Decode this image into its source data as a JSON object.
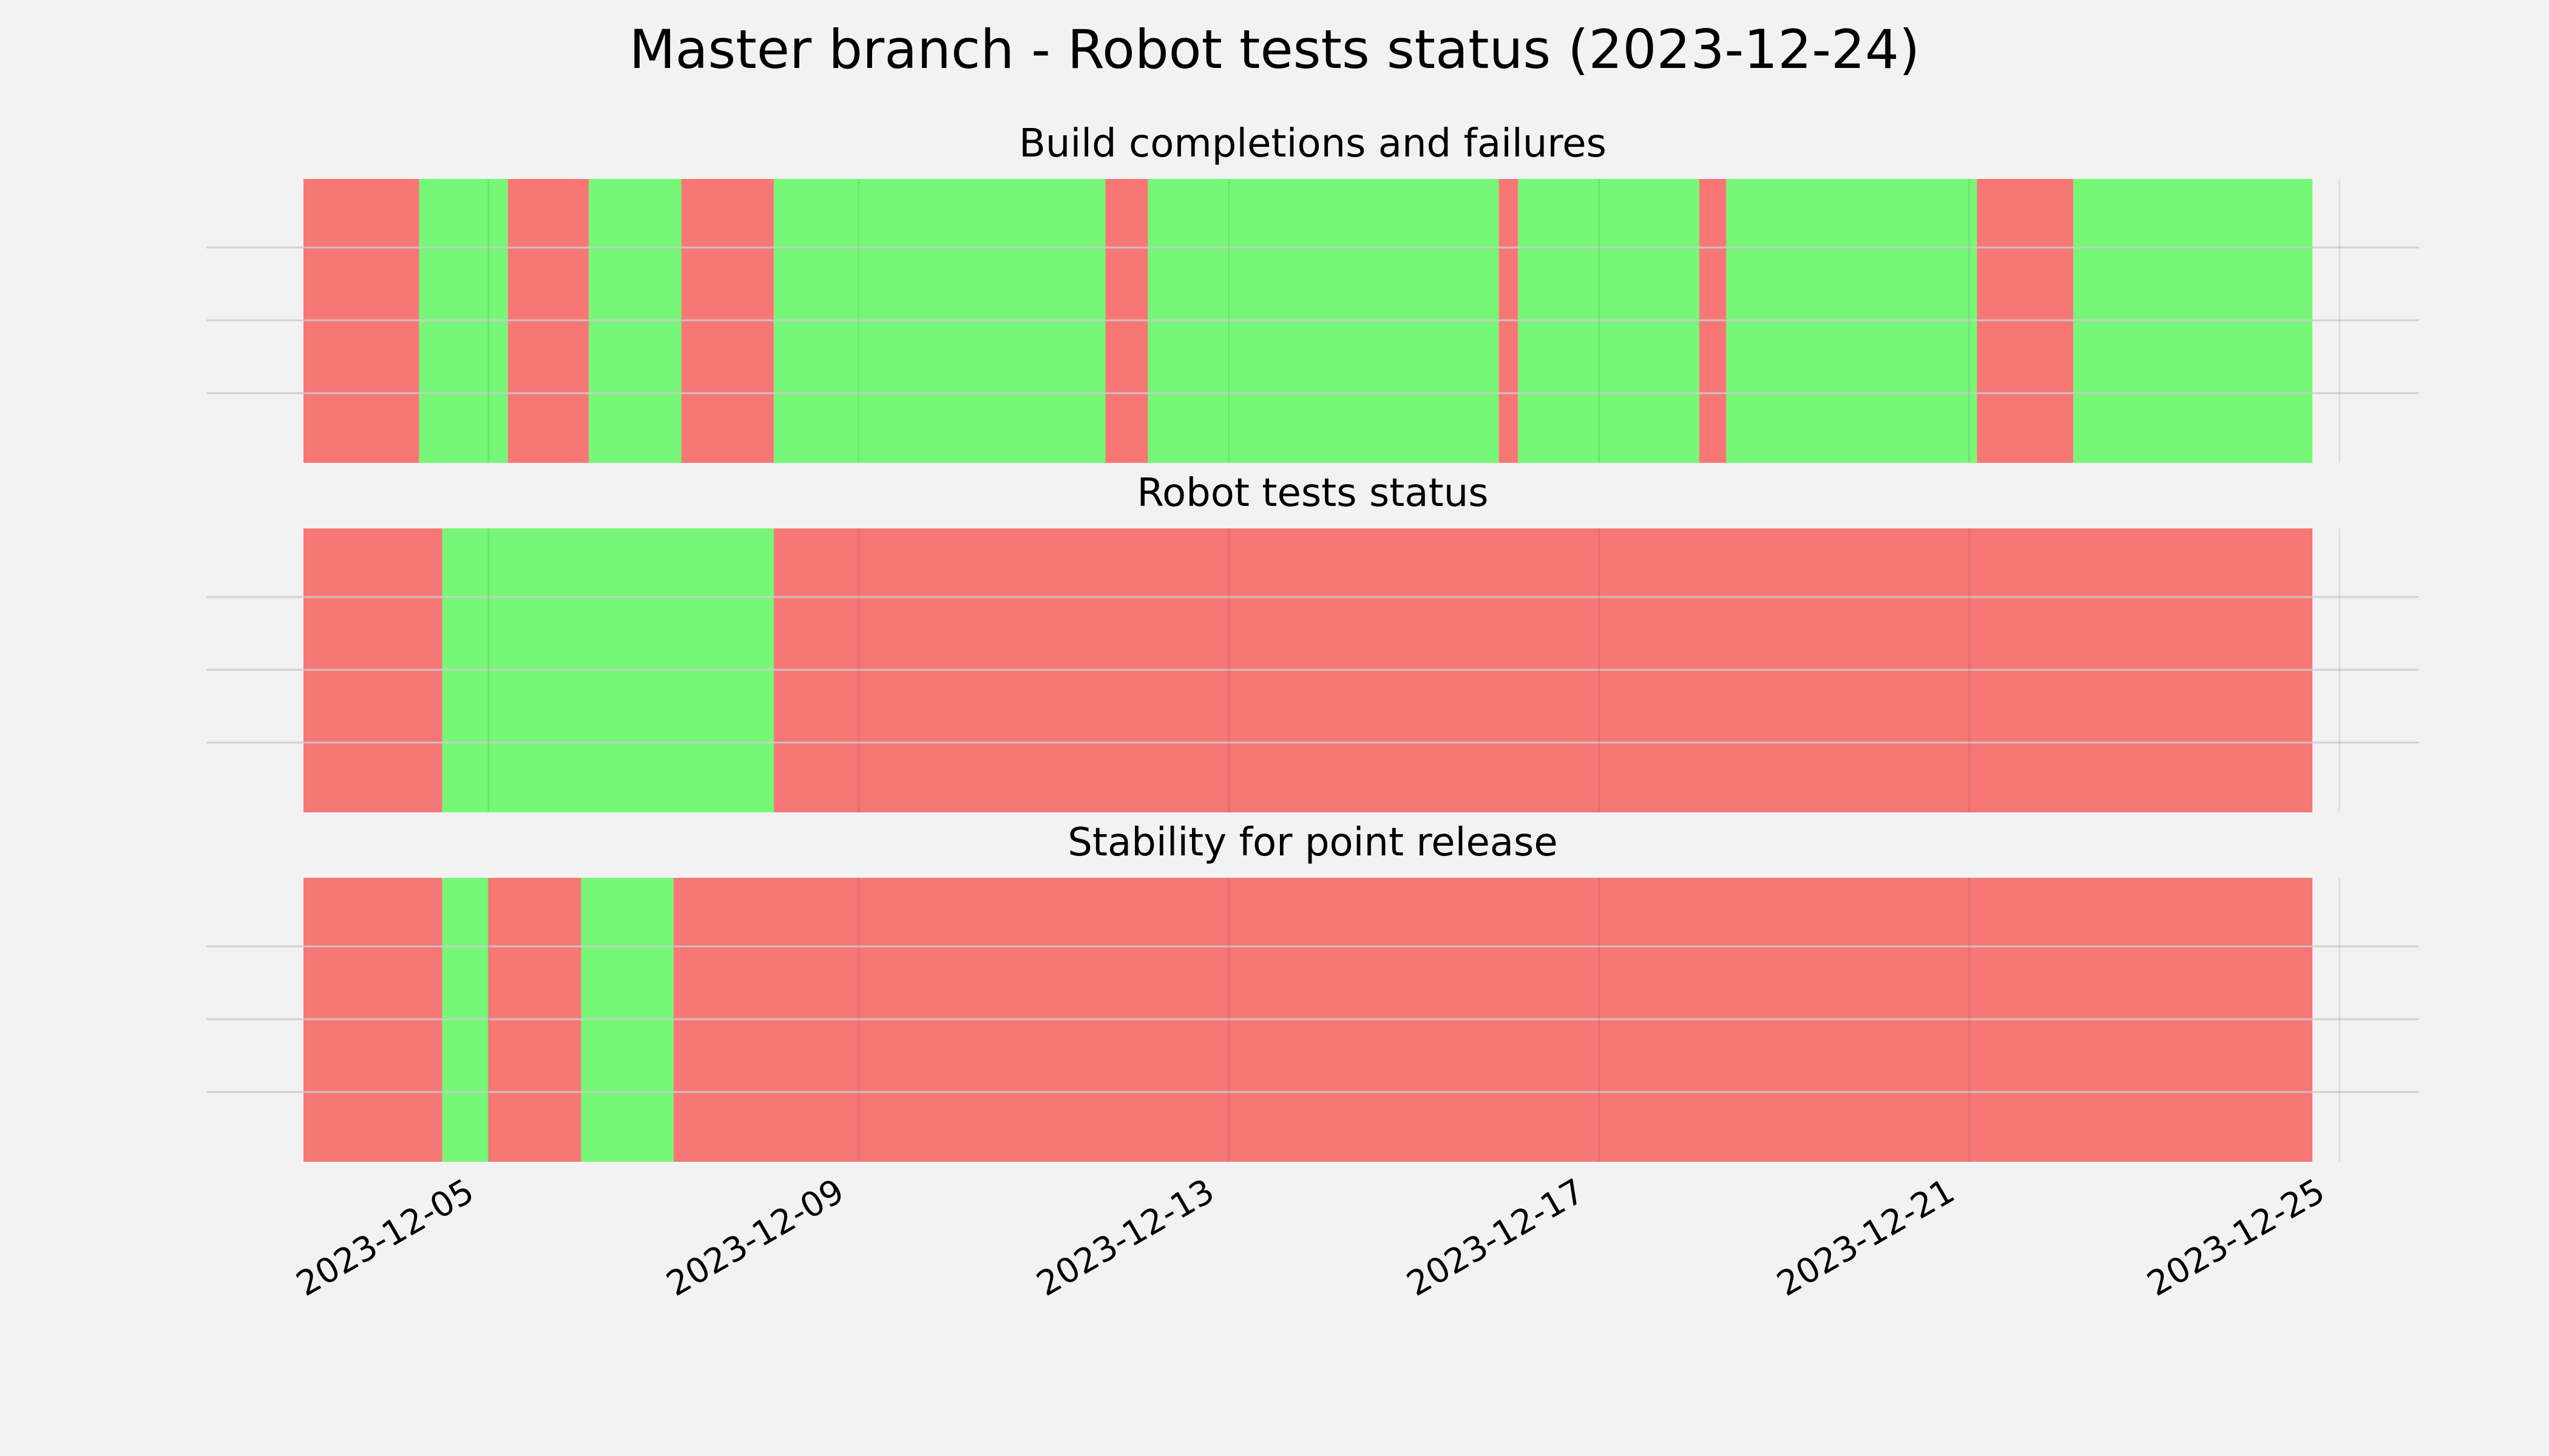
{
  "chart_data": {
    "type": "timeline",
    "title": "Master branch - Robot tests status (2023-12-24)",
    "x_range": [
      "2023-12-03T00:00",
      "2023-12-25T04:00"
    ],
    "x_ticks": [
      "2023-12-05",
      "2023-12-09",
      "2023-12-13",
      "2023-12-17",
      "2023-12-21",
      "2023-12-25"
    ],
    "grid": true,
    "colors": {
      "pass": "#77f777",
      "fail": "#f77777",
      "background": "#f2f2f2",
      "grid": "#cccccc"
    },
    "panels": [
      {
        "title": "Build completions and failures",
        "segments": [
          {
            "start": "2023-12-03T00:00",
            "end": "2023-12-04T06:00",
            "status": "fail"
          },
          {
            "start": "2023-12-04T06:00",
            "end": "2023-12-05T05:00",
            "status": "pass"
          },
          {
            "start": "2023-12-05T05:00",
            "end": "2023-12-06T02:00",
            "status": "fail"
          },
          {
            "start": "2023-12-06T02:00",
            "end": "2023-12-07T02:00",
            "status": "pass"
          },
          {
            "start": "2023-12-07T02:00",
            "end": "2023-12-08T02:00",
            "status": "fail"
          },
          {
            "start": "2023-12-08T02:00",
            "end": "2023-12-11T16:00",
            "status": "pass"
          },
          {
            "start": "2023-12-11T16:00",
            "end": "2023-12-12T03:00",
            "status": "fail"
          },
          {
            "start": "2023-12-12T03:00",
            "end": "2023-12-15T22:00",
            "status": "pass"
          },
          {
            "start": "2023-12-15T22:00",
            "end": "2023-12-16T03:00",
            "status": "fail"
          },
          {
            "start": "2023-12-16T03:00",
            "end": "2023-12-18T02:00",
            "status": "pass"
          },
          {
            "start": "2023-12-18T02:00",
            "end": "2023-12-18T09:00",
            "status": "fail"
          },
          {
            "start": "2023-12-18T09:00",
            "end": "2023-12-21T02:00",
            "status": "pass"
          },
          {
            "start": "2023-12-21T02:00",
            "end": "2023-12-22T03:00",
            "status": "fail"
          },
          {
            "start": "2023-12-22T03:00",
            "end": "2023-12-24T17:00",
            "status": "pass"
          }
        ]
      },
      {
        "title": "Robot tests status",
        "segments": [
          {
            "start": "2023-12-03T00:00",
            "end": "2023-12-04T12:00",
            "status": "fail"
          },
          {
            "start": "2023-12-04T12:00",
            "end": "2023-12-08T02:00",
            "status": "pass"
          },
          {
            "start": "2023-12-08T02:00",
            "end": "2023-12-24T17:00",
            "status": "fail"
          }
        ]
      },
      {
        "title": "Stability for point release",
        "segments": [
          {
            "start": "2023-12-03T00:00",
            "end": "2023-12-04T12:00",
            "status": "fail"
          },
          {
            "start": "2023-12-04T12:00",
            "end": "2023-12-05T00:00",
            "status": "pass"
          },
          {
            "start": "2023-12-05T00:00",
            "end": "2023-12-06T00:00",
            "status": "fail"
          },
          {
            "start": "2023-12-06T00:00",
            "end": "2023-12-07T00:00",
            "status": "pass"
          },
          {
            "start": "2023-12-07T00:00",
            "end": "2023-12-24T17:00",
            "status": "fail"
          }
        ]
      }
    ]
  }
}
